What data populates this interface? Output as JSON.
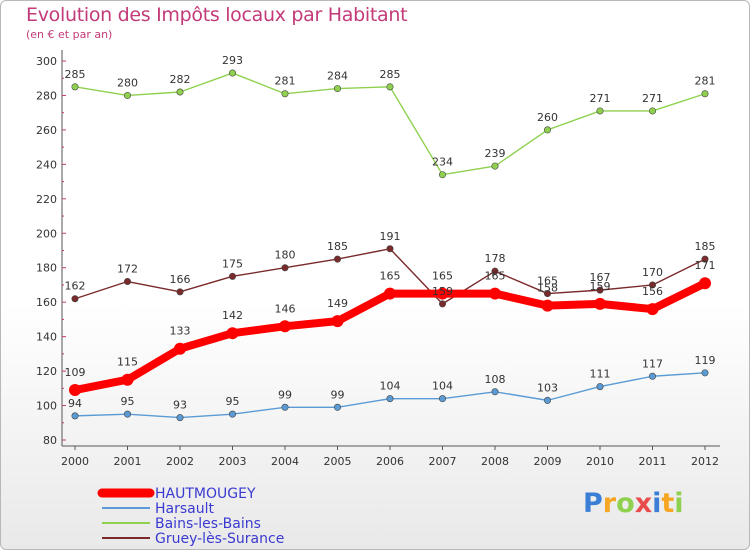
{
  "chart_data": {
    "type": "line",
    "title": "Evolution des Impôts locaux par Habitant",
    "subtitle": "(en € et par an)",
    "categories": [
      "2000",
      "2001",
      "2002",
      "2003",
      "2004",
      "2005",
      "2006",
      "2007",
      "2008",
      "2009",
      "2010",
      "2011",
      "2012"
    ],
    "ylim": [
      80,
      300
    ],
    "yticks": [
      80,
      100,
      120,
      140,
      160,
      180,
      200,
      220,
      240,
      260,
      280,
      300
    ],
    "grid": false,
    "legend_position": "bottom-left",
    "series": [
      {
        "name": "HAUTMOUGEY",
        "color": "#ff0000",
        "values": [
          109,
          115,
          133,
          142,
          146,
          149,
          165,
          165,
          165,
          158,
          159,
          156,
          171
        ]
      },
      {
        "name": "Harsault",
        "color": "#5b9bd5",
        "values": [
          94,
          95,
          93,
          95,
          99,
          99,
          104,
          104,
          108,
          103,
          111,
          117,
          119
        ]
      },
      {
        "name": "Bains-les-Bains",
        "color": "#8fd14f",
        "values": [
          285,
          280,
          282,
          293,
          281,
          284,
          285,
          234,
          239,
          260,
          271,
          271,
          281
        ]
      },
      {
        "name": "Gruey-lès-Surance",
        "color": "#7a2a2a",
        "values": [
          162,
          172,
          166,
          175,
          180,
          185,
          191,
          159,
          178,
          165,
          167,
          170,
          185
        ]
      }
    ]
  },
  "logo": {
    "text": "Proxiti",
    "colors": [
      "#3a7fd5",
      "#f5a623",
      "#8fd14f",
      "#e94c4c",
      "#3a7fd5",
      "#f5a623",
      "#8fd14f"
    ]
  }
}
